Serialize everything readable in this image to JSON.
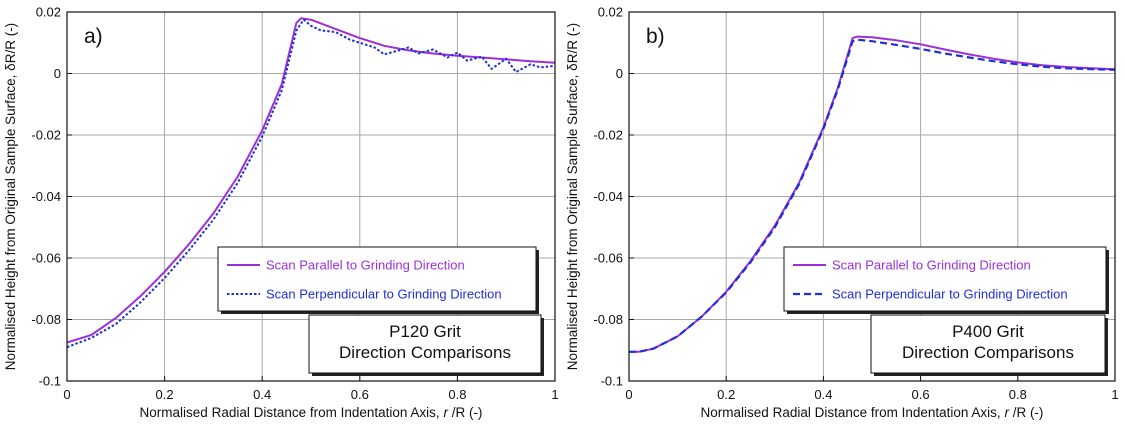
{
  "chart_data": [
    {
      "type": "line",
      "panel_label": "a)",
      "xlabel_prefix": "Normalised Radial Distance from Indentation Axis, ",
      "xlabel_var": "r",
      "xlabel_suffix": " /R (-)",
      "ylabel": "Normalised Height from Original Sample Surface, δR/R (-)",
      "xlim": [
        0,
        1
      ],
      "ylim": [
        -0.1,
        0.02
      ],
      "x_ticks": [
        "0",
        "0.2",
        "0.4",
        "0.6",
        "0.8",
        "1"
      ],
      "y_ticks": [
        "0.02",
        "0",
        "-0.02",
        "-0.04",
        "-0.06",
        "-0.08",
        "-0.1"
      ],
      "grid": true,
      "legend_placement": "center-right",
      "note_lines": [
        "P120 Grit",
        "Direction Comparisons"
      ],
      "series": [
        {
          "name": "Scan Parallel to Grinding Direction",
          "color": "#9b30d9",
          "style": "solid",
          "x": [
            0,
            0.05,
            0.1,
            0.15,
            0.2,
            0.25,
            0.3,
            0.35,
            0.4,
            0.44,
            0.47,
            0.48,
            0.5,
            0.55,
            0.6,
            0.65,
            0.7,
            0.75,
            0.8,
            0.85,
            0.9,
            0.95,
            1
          ],
          "y": [
            -0.0875,
            -0.085,
            -0.0795,
            -0.0725,
            -0.0645,
            -0.0555,
            -0.0455,
            -0.0335,
            -0.0185,
            -0.0035,
            0.0165,
            0.018,
            0.0175,
            0.0145,
            0.0115,
            0.009,
            0.0075,
            0.0065,
            0.0058,
            0.0052,
            0.0046,
            0.004,
            0.0035
          ]
        },
        {
          "name": "Scan Perpendicular to Grinding Direction",
          "color": "#1f2fd6",
          "style": "dotted",
          "x": [
            0,
            0.05,
            0.1,
            0.15,
            0.2,
            0.25,
            0.3,
            0.35,
            0.4,
            0.44,
            0.47,
            0.485,
            0.5,
            0.52,
            0.55,
            0.58,
            0.6,
            0.63,
            0.65,
            0.68,
            0.7,
            0.72,
            0.75,
            0.78,
            0.8,
            0.82,
            0.85,
            0.87,
            0.9,
            0.92,
            0.95,
            0.97,
            1
          ],
          "y": [
            -0.089,
            -0.086,
            -0.0815,
            -0.0745,
            -0.0665,
            -0.0575,
            -0.0475,
            -0.0355,
            -0.0205,
            -0.0055,
            0.014,
            0.0175,
            0.0155,
            0.014,
            0.0135,
            0.011,
            0.01,
            0.0085,
            0.0062,
            0.0075,
            0.0085,
            0.0065,
            0.0078,
            0.0052,
            0.0068,
            0.0042,
            0.0055,
            0.0015,
            0.0048,
            0.0005,
            0.003,
            0.002,
            0.0025
          ]
        }
      ]
    },
    {
      "type": "line",
      "panel_label": "b)",
      "xlabel_prefix": "Normalised Radial Distance from Indentation Axis, ",
      "xlabel_var": "r",
      "xlabel_suffix": " /R (-)",
      "ylabel": "Normalised Height from Original Sample Surface, δR/R (-)",
      "xlim": [
        0,
        1
      ],
      "ylim": [
        -0.1,
        0.02
      ],
      "x_ticks": [
        "0",
        "0.2",
        "0.4",
        "0.6",
        "0.8",
        "1"
      ],
      "y_ticks": [
        "0.02",
        "0",
        "-0.02",
        "-0.04",
        "-0.06",
        "-0.08",
        "-0.1"
      ],
      "grid": true,
      "legend_placement": "center-right",
      "note_lines": [
        "P400 Grit",
        "Direction Comparisons"
      ],
      "series": [
        {
          "name": "Scan Parallel to Grinding Direction",
          "color": "#9b30d9",
          "style": "solid",
          "x": [
            0,
            0.02,
            0.05,
            0.1,
            0.15,
            0.2,
            0.25,
            0.3,
            0.35,
            0.4,
            0.43,
            0.46,
            0.47,
            0.5,
            0.55,
            0.6,
            0.65,
            0.7,
            0.75,
            0.8,
            0.85,
            0.9,
            0.95,
            1
          ],
          "y": [
            -0.0905,
            -0.0905,
            -0.0895,
            -0.0855,
            -0.079,
            -0.071,
            -0.061,
            -0.0495,
            -0.0355,
            -0.0175,
            -0.0045,
            0.0115,
            0.012,
            0.0118,
            0.0108,
            0.0095,
            0.0078,
            0.0062,
            0.0048,
            0.0036,
            0.0027,
            0.0021,
            0.0017,
            0.0014
          ]
        },
        {
          "name": "Scan Perpendicular to Grinding Direction",
          "color": "#1f2fd6",
          "style": "dashed",
          "x": [
            0,
            0.02,
            0.05,
            0.1,
            0.15,
            0.2,
            0.25,
            0.3,
            0.35,
            0.4,
            0.43,
            0.46,
            0.47,
            0.5,
            0.55,
            0.6,
            0.65,
            0.7,
            0.75,
            0.8,
            0.85,
            0.9,
            0.95,
            1
          ],
          "y": [
            -0.0905,
            -0.0905,
            -0.0895,
            -0.0855,
            -0.079,
            -0.0712,
            -0.0614,
            -0.05,
            -0.036,
            -0.018,
            -0.005,
            0.0105,
            0.011,
            0.0105,
            0.0093,
            0.008,
            0.0065,
            0.0052,
            0.004,
            0.003,
            0.0022,
            0.0017,
            0.0014,
            0.0012
          ]
        }
      ]
    }
  ]
}
